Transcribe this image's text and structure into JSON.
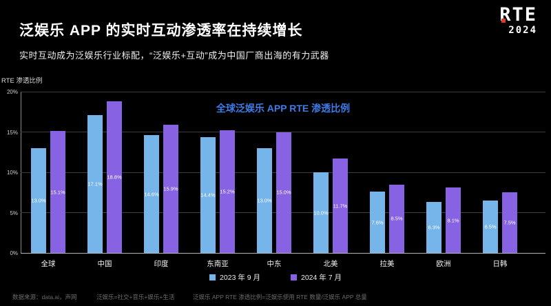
{
  "header": {
    "title": "泛娱乐 APP 的实时互动渗透率在持续增长",
    "subtitle": "实时互动成为泛娱乐行业标配，“泛娱乐+互动”成为中国厂商出海的有力武器",
    "logo": {
      "line1": "RTE",
      "line2": "2024",
      "accent_color": "#e03a2f"
    }
  },
  "chart_data": {
    "type": "bar",
    "title": "全球泛娱乐 APP RTE 渗透比例",
    "title_color": "#3e7ce8",
    "ylabel": "RTE 渗透比例",
    "xlabel": "",
    "categories": [
      "全球",
      "中国",
      "印度",
      "东南亚",
      "中东",
      "北美",
      "拉美",
      "欧洲",
      "日韩"
    ],
    "series": [
      {
        "name": "2023 年 9 月",
        "color": "#76b5ea",
        "values": [
          13.0,
          17.1,
          14.6,
          14.4,
          13.0,
          10.0,
          7.6,
          6.3,
          6.5
        ]
      },
      {
        "name": "2024 年 7 月",
        "color": "#8763e3",
        "values": [
          15.1,
          18.8,
          15.9,
          15.2,
          15.0,
          11.7,
          8.5,
          8.1,
          7.5
        ]
      }
    ],
    "ylim": [
      0,
      20
    ],
    "ytick_step": 5,
    "ytick_suffix": "%",
    "grid": true,
    "legend_position": "bottom"
  },
  "footer": {
    "source": "数据来源：data.ai，声网",
    "note1": "泛娱乐=社交+音乐+娱乐+生活",
    "note2": "泛娱乐 APP RTE 渗透比例=泛娱乐使用 RTE 数量/泛娱乐 APP 总量"
  }
}
